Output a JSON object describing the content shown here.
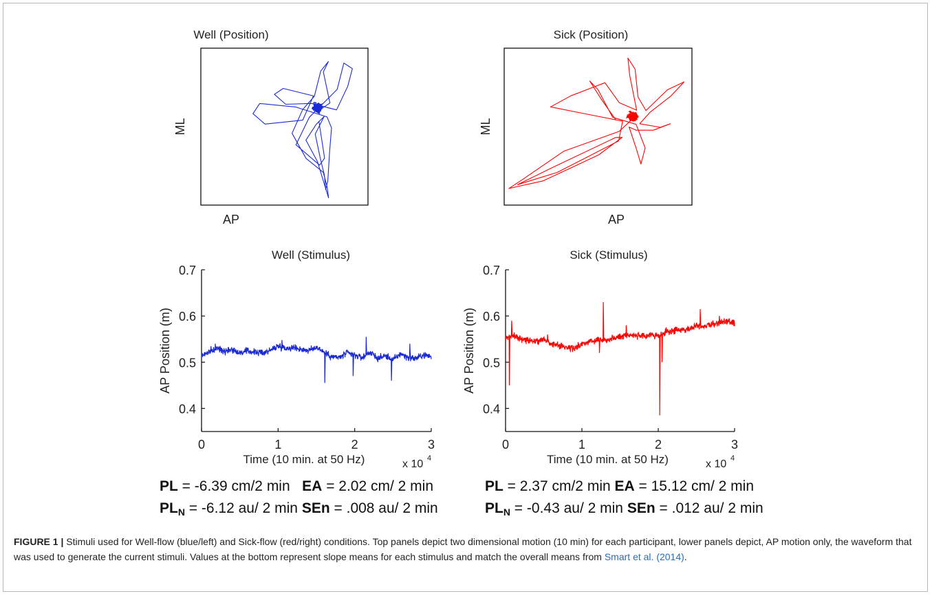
{
  "figure": {
    "panels": {
      "well_position": {
        "title": "Well (Position)",
        "xlabel": "AP",
        "ylabel": "ML"
      },
      "sick_position": {
        "title": "Sick (Position)",
        "xlabel": "AP",
        "ylabel": "ML"
      },
      "well_stimulus": {
        "title": "Well (Stimulus)"
      },
      "sick_stimulus": {
        "title": "Sick (Stimulus)"
      }
    },
    "stats": {
      "left": {
        "pl_label": "PL",
        "pl_value": " = -6.39 cm/2 min",
        "ea_label": "EA",
        "ea_value": " = 2.02 cm/ 2 min",
        "pln_label": "PL",
        "pln_sub": "N",
        "pln_value": " = -6.12 au/ 2 min ",
        "sen_label": "SEn",
        "sen_value": " = .008 au/ 2 min"
      },
      "right": {
        "pl_label": "PL",
        "pl_value": " = 2.37 cm/2 min ",
        "ea_label": "EA",
        "ea_value": " = 15.12 cm/ 2 min",
        "pln_label": "PL",
        "pln_sub": "N",
        "pln_value": " = -0.43 au/ 2 min ",
        "sen_label": "SEn",
        "sen_value": " = .012 au/ 2 min"
      }
    },
    "caption": {
      "label": "FIGURE 1 |",
      "text": " Stimuli used for Well-flow (blue/left) and Sick-flow (red/right) conditions. Top panels depict two dimensional motion (10 min) for each participant, lower panels depict, AP motion only, the waveform that was used to generate the current stimuli. Values at the bottom represent slope means for each stimulus and match the overall means from ",
      "citation": "Smart et al. (2014)",
      "end": "."
    }
  },
  "chart_data": [
    {
      "type": "line",
      "title": "Well (Position)",
      "xlabel": "AP",
      "ylabel": "ML",
      "color": "#1a2ad6",
      "ticks": "none",
      "shape": "trajectory concentrated near center, loops reaching upward and a long tail extending downward"
    },
    {
      "type": "line",
      "title": "Sick (Position)",
      "xlabel": "AP",
      "ylabel": "ML",
      "color": "#ff0000",
      "ticks": "none",
      "shape": "dense cluster right of center, long loops extending toward lower-left and upper-left"
    },
    {
      "type": "line",
      "title": "Well (Stimulus)",
      "xlabel": "Time (10 min. at 50 Hz)",
      "ylabel": "AP Position (m)",
      "x_multiplier": "x 10",
      "x_multiplier_exp": "4",
      "xlim": [
        0,
        3
      ],
      "ylim": [
        0.35,
        0.7
      ],
      "xticks": [
        "0",
        "1",
        "2",
        "3"
      ],
      "yticks": [
        "0.4",
        "0.5",
        "0.6",
        "0.7"
      ],
      "color": "#1a2ad6",
      "series": [
        {
          "x": [
            0,
            0.1,
            0.2,
            0.3,
            0.4,
            0.5,
            0.6,
            0.7,
            0.8,
            0.9,
            1.0,
            1.1,
            1.2,
            1.3,
            1.4,
            1.5,
            1.6,
            1.7,
            1.8,
            1.9,
            2.0,
            2.1,
            2.2,
            2.3,
            2.4,
            2.5,
            2.6,
            2.7,
            2.8,
            2.9,
            3.0
          ],
          "values": [
            0.515,
            0.522,
            0.53,
            0.525,
            0.528,
            0.52,
            0.524,
            0.522,
            0.52,
            0.526,
            0.535,
            0.53,
            0.532,
            0.528,
            0.525,
            0.533,
            0.522,
            0.512,
            0.51,
            0.52,
            0.515,
            0.51,
            0.522,
            0.508,
            0.514,
            0.505,
            0.518,
            0.51,
            0.508,
            0.516,
            0.512
          ],
          "spikes": [
            [
              0.18,
              0.54
            ],
            [
              1.05,
              0.548
            ],
            [
              1.61,
              0.455
            ],
            [
              1.98,
              0.47
            ],
            [
              2.15,
              0.555
            ],
            [
              2.48,
              0.46
            ],
            [
              2.72,
              0.54
            ]
          ]
        }
      ]
    },
    {
      "type": "line",
      "title": "Sick (Stimulus)",
      "xlabel": "Time (10 min. at 50 Hz)",
      "ylabel": "AP Position (m)",
      "x_multiplier": "x 10",
      "x_multiplier_exp": "4",
      "xlim": [
        0,
        3
      ],
      "ylim": [
        0.35,
        0.7
      ],
      "xticks": [
        "0",
        "1",
        "2",
        "3"
      ],
      "yticks": [
        "0.4",
        "0.5",
        "0.6",
        "0.7"
      ],
      "color": "#ff0000",
      "series": [
        {
          "x": [
            0,
            0.1,
            0.2,
            0.3,
            0.4,
            0.5,
            0.6,
            0.7,
            0.8,
            0.9,
            1.0,
            1.1,
            1.2,
            1.3,
            1.4,
            1.5,
            1.6,
            1.7,
            1.8,
            1.9,
            2.0,
            2.1,
            2.2,
            2.3,
            2.4,
            2.5,
            2.6,
            2.7,
            2.8,
            2.9,
            3.0
          ],
          "values": [
            0.55,
            0.56,
            0.55,
            0.548,
            0.545,
            0.55,
            0.54,
            0.536,
            0.532,
            0.53,
            0.538,
            0.545,
            0.55,
            0.548,
            0.552,
            0.555,
            0.56,
            0.558,
            0.555,
            0.56,
            0.556,
            0.565,
            0.568,
            0.57,
            0.572,
            0.58,
            0.578,
            0.582,
            0.585,
            0.588,
            0.585
          ],
          "spikes": [
            [
              0.05,
              0.45
            ],
            [
              0.08,
              0.59
            ],
            [
              0.55,
              0.56
            ],
            [
              1.28,
              0.63
            ],
            [
              1.23,
              0.52
            ],
            [
              1.58,
              0.58
            ],
            [
              2.02,
              0.385
            ],
            [
              2.05,
              0.5
            ],
            [
              2.55,
              0.615
            ],
            [
              2.8,
              0.6
            ]
          ]
        }
      ]
    }
  ]
}
